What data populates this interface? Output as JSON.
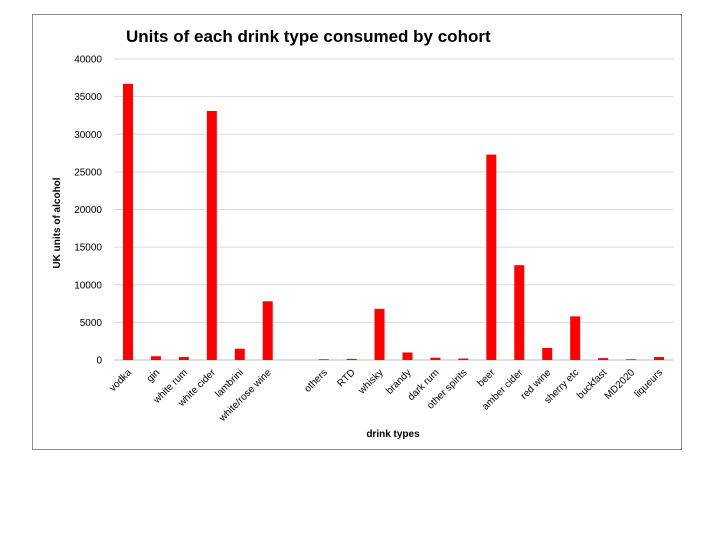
{
  "chart_data": {
    "type": "bar",
    "title": "Units of each drink type consumed by cohort",
    "xlabel": "drink types",
    "ylabel": "UK units of alcohol",
    "ylim": [
      0,
      40000
    ],
    "yticks": [
      0,
      5000,
      10000,
      15000,
      20000,
      25000,
      30000,
      35000,
      40000
    ],
    "grid": true,
    "legend": "none",
    "bar_color": "#ff0000",
    "categories": [
      "vodka",
      "gin",
      "white rum",
      "white cider",
      "lambrini",
      "white/rose wine",
      "",
      "others",
      "RTD",
      "whisky",
      "brandy",
      "dark rum",
      "other spirits",
      "beer",
      "amber cider",
      "red wine",
      "sherry etc",
      "buckfast",
      "MD2020",
      "liqueurs"
    ],
    "values": [
      36700,
      500,
      400,
      33100,
      1500,
      7800,
      0,
      100,
      150,
      6800,
      1000,
      300,
      200,
      27300,
      12600,
      1600,
      5800,
      250,
      100,
      400
    ]
  }
}
